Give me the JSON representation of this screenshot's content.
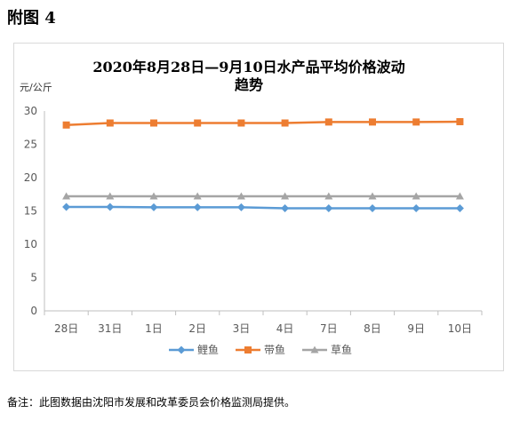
{
  "figure_label": "附图 4",
  "footnote": "备注：此图数据由沈阳市发展和改革委员会价格监测局提供。",
  "chart_data": {
    "type": "line",
    "title_line1": "2020年8月28日—9月10日水产品平均价格波动",
    "title_line2": "趋势",
    "ylabel": "元/公斤",
    "categories": [
      "28日",
      "31日",
      "1日",
      "2日",
      "3日",
      "4日",
      "7日",
      "8日",
      "9日",
      "10日"
    ],
    "ylim": [
      0,
      30
    ],
    "yticks": [
      0,
      5,
      10,
      15,
      20,
      25,
      30
    ],
    "grid": false,
    "legend_position": "bottom",
    "series": [
      {
        "name": "鲤鱼",
        "color": "#5B9BD5",
        "marker": "diamond",
        "values": [
          15.6,
          15.6,
          15.55,
          15.55,
          15.55,
          15.4,
          15.4,
          15.4,
          15.4,
          15.4
        ]
      },
      {
        "name": "带鱼",
        "color": "#ED7D31",
        "marker": "square",
        "values": [
          27.9,
          28.2,
          28.2,
          28.2,
          28.2,
          28.2,
          28.35,
          28.35,
          28.35,
          28.4
        ]
      },
      {
        "name": "草鱼",
        "color": "#A5A5A5",
        "marker": "triangle",
        "values": [
          17.2,
          17.2,
          17.2,
          17.2,
          17.2,
          17.2,
          17.2,
          17.2,
          17.2,
          17.2
        ]
      }
    ]
  }
}
